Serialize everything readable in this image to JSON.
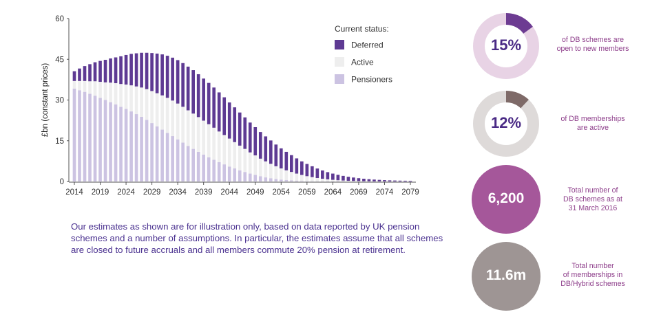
{
  "chart_data": {
    "type": "bar",
    "stacked": true,
    "ylabel": "£bn (constant prices)",
    "xlabel": "",
    "ylim": [
      0,
      60
    ],
    "yticks": [
      0,
      15,
      30,
      45,
      60
    ],
    "xtick_labels": [
      "2014",
      "2019",
      "2024",
      "2029",
      "2034",
      "2039",
      "2044",
      "2049",
      "2054",
      "2059",
      "2064",
      "2069",
      "2074",
      "2079"
    ],
    "legend_title": "Current status:",
    "legend_position": "top-right",
    "grid": false,
    "categories": [
      2014,
      2015,
      2016,
      2017,
      2018,
      2019,
      2020,
      2021,
      2022,
      2023,
      2024,
      2025,
      2026,
      2027,
      2028,
      2029,
      2030,
      2031,
      2032,
      2033,
      2034,
      2035,
      2036,
      2037,
      2038,
      2039,
      2040,
      2041,
      2042,
      2043,
      2044,
      2045,
      2046,
      2047,
      2048,
      2049,
      2050,
      2051,
      2052,
      2053,
      2054,
      2055,
      2056,
      2057,
      2058,
      2059,
      2060,
      2061,
      2062,
      2063,
      2064,
      2065,
      2066,
      2067,
      2068,
      2069,
      2070,
      2071,
      2072,
      2073,
      2074,
      2075,
      2076,
      2077,
      2078,
      2079
    ],
    "series": [
      {
        "name": "Pensioners",
        "color": "#ccc3e2",
        "values": [
          34.2,
          33.6,
          33.0,
          32.3,
          31.6,
          30.8,
          30.0,
          29.2,
          28.4,
          27.5,
          26.7,
          25.8,
          24.8,
          23.8,
          22.7,
          21.5,
          20.3,
          19.1,
          17.9,
          16.7,
          15.5,
          14.3,
          13.1,
          12.0,
          10.9,
          9.9,
          8.9,
          8.0,
          7.1,
          6.3,
          5.5,
          4.8,
          4.1,
          3.5,
          2.9,
          2.4,
          1.9,
          1.5,
          1.2,
          0.9,
          0.7,
          0.5,
          0.4,
          0.3,
          0.2,
          0.15,
          0.1,
          0.07,
          0.05,
          0.03,
          0.02,
          0.01,
          0.01,
          0,
          0,
          0,
          0,
          0,
          0,
          0,
          0,
          0,
          0,
          0,
          0,
          0
        ]
      },
      {
        "name": "Active",
        "color": "#eeeeee",
        "values": [
          2.8,
          3.4,
          4.0,
          4.6,
          5.3,
          5.9,
          6.5,
          7.2,
          7.8,
          8.4,
          9.0,
          9.6,
          10.2,
          10.8,
          11.3,
          11.8,
          12.2,
          12.6,
          12.9,
          13.1,
          13.2,
          13.2,
          13.1,
          13.0,
          12.8,
          12.5,
          12.2,
          11.8,
          11.3,
          10.8,
          10.3,
          9.7,
          9.1,
          8.5,
          7.8,
          7.2,
          6.5,
          5.9,
          5.3,
          4.7,
          4.1,
          3.6,
          3.1,
          2.6,
          2.2,
          1.8,
          1.5,
          1.2,
          0.95,
          0.75,
          0.58,
          0.44,
          0.33,
          0.25,
          0.18,
          0.13,
          0.09,
          0.06,
          0.04,
          0.03,
          0.02,
          0.01,
          0.01,
          0,
          0,
          0
        ]
      },
      {
        "name": "Deferred",
        "color": "#5e3a93",
        "values": [
          3.6,
          4.6,
          5.5,
          6.3,
          7.0,
          7.7,
          8.3,
          8.9,
          9.5,
          10.2,
          10.9,
          11.6,
          12.2,
          12.8,
          13.4,
          14.0,
          14.6,
          15.1,
          15.5,
          15.8,
          16.0,
          16.1,
          16.1,
          16.0,
          15.8,
          15.5,
          15.2,
          14.8,
          14.4,
          13.9,
          13.3,
          12.8,
          12.2,
          11.6,
          11.0,
          10.4,
          9.8,
          9.2,
          8.6,
          8.0,
          7.4,
          6.8,
          6.2,
          5.6,
          5.0,
          4.5,
          4.0,
          3.5,
          3.05,
          2.65,
          2.3,
          2.0,
          1.72,
          1.48,
          1.27,
          1.08,
          0.92,
          0.78,
          0.66,
          0.56,
          0.47,
          0.4,
          0.34,
          0.3,
          0.27,
          0.25
        ]
      }
    ]
  },
  "note": "Our estimates as shown are for illustration only, based on data reported by UK pension schemes and a number of assumptions. In particular, the estimates assume that all schemes are closed to future accruals and all members commute 20% pension at retirement.",
  "stats": [
    {
      "type": "donut",
      "value": "15%",
      "fraction": 0.15,
      "color": "#6d3c92",
      "track": "#e8d3e5",
      "label_lines": [
        "of DB schemes are",
        "open to new members"
      ]
    },
    {
      "type": "donut",
      "value": "12%",
      "fraction": 0.12,
      "color": "#7e6a68",
      "track": "#dedad9",
      "label_lines": [
        "of DB memberships",
        "are active"
      ]
    },
    {
      "type": "circle",
      "value": "6,200",
      "color": "#a5579a",
      "label_lines": [
        "Total number of",
        "DB schemes as at",
        "31 March 2016"
      ]
    },
    {
      "type": "circle",
      "value": "11.6m",
      "color": "#9e9594",
      "label_lines": [
        "Total number",
        "of memberships in",
        "DB/Hybrid schemes"
      ]
    }
  ],
  "colors": {
    "text_purple": "#4b3290",
    "label_purple": "#8e3f8b"
  }
}
